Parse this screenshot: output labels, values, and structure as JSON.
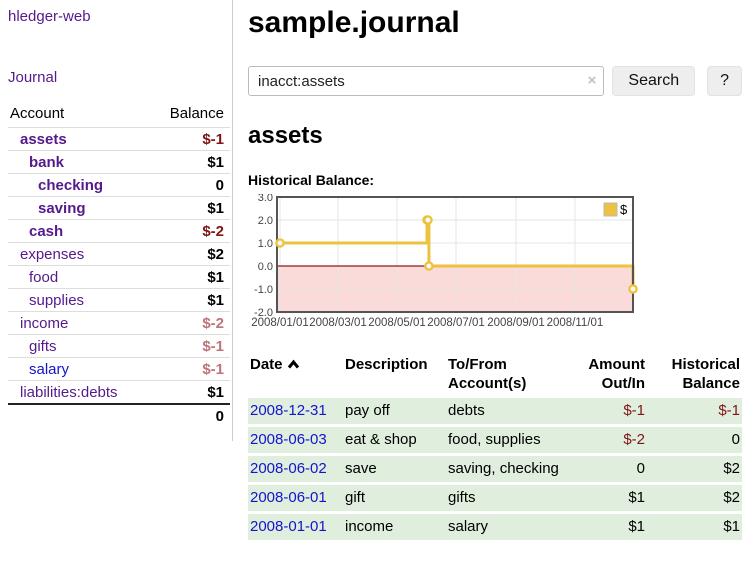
{
  "app": {
    "brand": "hledger-web"
  },
  "sidebar": {
    "nav_journal": "Journal",
    "accounts": {
      "header_account": "Account",
      "header_balance": "Balance",
      "rows": [
        {
          "name": "assets",
          "balance": "$-1",
          "indent": 0,
          "current": true,
          "neg": "strong"
        },
        {
          "name": "bank",
          "balance": "$1",
          "indent": 1,
          "current": true,
          "neg": "none"
        },
        {
          "name": "checking",
          "balance": "0",
          "indent": 2,
          "current": true,
          "neg": "none"
        },
        {
          "name": "saving",
          "balance": "$1",
          "indent": 2,
          "current": true,
          "neg": "none"
        },
        {
          "name": "cash",
          "balance": "$-2",
          "indent": 1,
          "current": true,
          "neg": "strong"
        },
        {
          "name": "expenses",
          "balance": "$2",
          "indent": 0,
          "current": false,
          "neg": "none"
        },
        {
          "name": "food",
          "balance": "$1",
          "indent": 1,
          "current": false,
          "neg": "none"
        },
        {
          "name": "supplies",
          "balance": "$1",
          "indent": 1,
          "current": false,
          "neg": "none"
        },
        {
          "name": "income",
          "balance": "$-2",
          "indent": 0,
          "current": false,
          "neg": "soft"
        },
        {
          "name": "gifts",
          "balance": "$-1",
          "indent": 1,
          "current": false,
          "neg": "soft"
        },
        {
          "name": "salary",
          "balance": "$-1",
          "indent": 1,
          "current": false,
          "neg": "soft",
          "unvisited": true
        },
        {
          "name": "liabilities:debts",
          "balance": "$1",
          "indent": 0,
          "current": false,
          "neg": "none"
        }
      ],
      "total": "0"
    }
  },
  "main": {
    "title": "sample.journal",
    "search": {
      "value": "inacct:assets",
      "clear_icon": "×",
      "search_button": "Search",
      "help_button": "?"
    },
    "account_heading": "assets",
    "section_label": "Historical Balance:"
  },
  "chart_data": {
    "type": "line",
    "step": true,
    "title": "Historical Balance:",
    "series": [
      {
        "name": "$",
        "color": "#edc240",
        "points": [
          [
            "2008-01-01",
            1
          ],
          [
            "2008-06-01",
            2
          ],
          [
            "2008-06-02",
            2
          ],
          [
            "2008-06-03",
            0
          ],
          [
            "2008-12-31",
            -1
          ]
        ]
      }
    ],
    "xlim": [
      "2008-01-01",
      "2008-12-31"
    ],
    "ylim": [
      -2,
      3
    ],
    "y_ticks": [
      {
        "v": 3,
        "label": "3.0"
      },
      {
        "v": 2,
        "label": "2.0"
      },
      {
        "v": 1,
        "label": "1.0"
      },
      {
        "v": 0,
        "label": "0.0"
      },
      {
        "v": -1,
        "label": "-1.0"
      },
      {
        "v": -2,
        "label": "-2.0"
      }
    ],
    "x_ticks": [
      {
        "d": "2008-01-01",
        "label": "2008/01/01"
      },
      {
        "d": "2008-03-01",
        "label": "2008/03/01"
      },
      {
        "d": "2008-05-01",
        "label": "2008/05/01"
      },
      {
        "d": "2008-07-01",
        "label": "2008/07/01"
      },
      {
        "d": "2008-09-01",
        "label": "2008/09/01"
      },
      {
        "d": "2008-11-01",
        "label": "2008/11/01"
      }
    ],
    "legend": {
      "label": "$",
      "position": "top-right"
    },
    "colors": {
      "line": "#edc240",
      "marker_fill": "#fffdf5",
      "negative_fill": "#fbdada",
      "zero_line": "#8b1a1a",
      "grid": "#e6e6e6",
      "border": "#545454",
      "tick_text": "#444444"
    }
  },
  "register": {
    "headers": {
      "date": "Date",
      "description": "Description",
      "accounts": "To/From Account(s)",
      "amount": "Amount Out/In",
      "balance": "Historical Balance"
    },
    "sort_icon": "chevron-up",
    "rows": [
      {
        "date": "2008-12-31",
        "description": "pay off",
        "accounts": "debts",
        "amount": "$-1",
        "amount_neg": true,
        "balance": "$-1",
        "balance_neg": true
      },
      {
        "date": "2008-06-03",
        "description": "eat & shop",
        "accounts": "food, supplies",
        "amount": "$-2",
        "amount_neg": true,
        "balance": "0",
        "balance_neg": false
      },
      {
        "date": "2008-06-02",
        "description": "save",
        "accounts": "saving, checking",
        "amount": "0",
        "amount_neg": false,
        "balance": "$2",
        "balance_neg": false
      },
      {
        "date": "2008-06-01",
        "description": "gift",
        "accounts": "gifts",
        "amount": "$1",
        "amount_neg": false,
        "balance": "$2",
        "balance_neg": false
      },
      {
        "date": "2008-01-01",
        "description": "income",
        "accounts": "salary",
        "amount": "$1",
        "amount_neg": false,
        "balance": "$1",
        "balance_neg": false
      }
    ]
  }
}
